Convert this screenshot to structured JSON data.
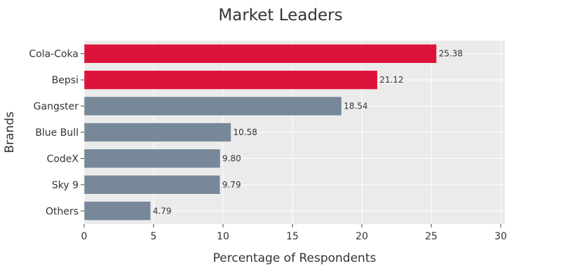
{
  "chart_data": {
    "type": "bar",
    "orientation": "horizontal",
    "title": "Market Leaders",
    "xlabel": "Percentage of Respondents",
    "ylabel": "Brands",
    "categories": [
      "Cola-Coka",
      "Bepsi",
      "Gangster",
      "Blue Bull",
      "CodeX",
      "Sky 9",
      "Others"
    ],
    "values": [
      25.38,
      21.12,
      18.54,
      10.58,
      9.8,
      9.79,
      4.79
    ],
    "value_labels": [
      "25.38",
      "21.12",
      "18.54",
      "10.58",
      "9.80",
      "9.79",
      "4.79"
    ],
    "bar_colors": [
      "#DC143C",
      "#DC143C",
      "#778899",
      "#778899",
      "#778899",
      "#778899",
      "#778899"
    ],
    "xlim": [
      0,
      30.3
    ],
    "xticks": [
      0,
      5,
      10,
      15,
      20,
      25,
      30
    ],
    "xtick_labels": [
      "0",
      "5",
      "10",
      "15",
      "20",
      "25",
      "30"
    ],
    "grid": true,
    "plot_background": "#EBEBEB",
    "legend": "none"
  }
}
